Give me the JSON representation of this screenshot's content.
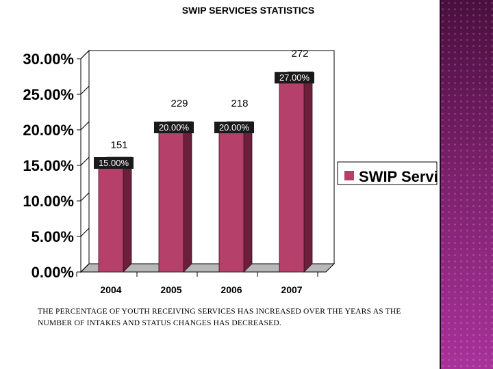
{
  "title": "SWIP SERVICES STATISTICS",
  "caption": "THE PERCENTAGE OF YOUTH RECEIVING SERVICES HAS INCREASED OVER THE YEARS AS THE NUMBER OF INTAKES AND STATUS CHANGES HAS DECREASED.",
  "colors": {
    "bar_front": "#b5406a",
    "bar_side": "#6b1f3b",
    "bar_top": "#8a2c4c",
    "label_box": "#1a1a1a",
    "band": "#7a1f6a"
  },
  "chart_data": {
    "type": "bar",
    "title": "SWIP SERVICES STATISTICS",
    "categories": [
      "2004",
      "2005",
      "2006",
      "2007"
    ],
    "series": [
      {
        "name": "SWIP Services",
        "values": [
          15.0,
          20.0,
          20.0,
          27.0
        ],
        "value_labels": [
          "15.00%",
          "20.00%",
          "20.00%",
          "27.00%"
        ],
        "counts": [
          "151",
          "229",
          "218",
          "272"
        ]
      }
    ],
    "ylim": [
      0,
      30
    ],
    "yticks": [
      0,
      5,
      10,
      15,
      20,
      25,
      30
    ],
    "ytick_labels": [
      "0.00%",
      "5.00%",
      "10.00%",
      "15.00%",
      "20.00%",
      "25.00%",
      "30.00%"
    ],
    "legend_position": "right",
    "grid": false,
    "three_d": true
  }
}
